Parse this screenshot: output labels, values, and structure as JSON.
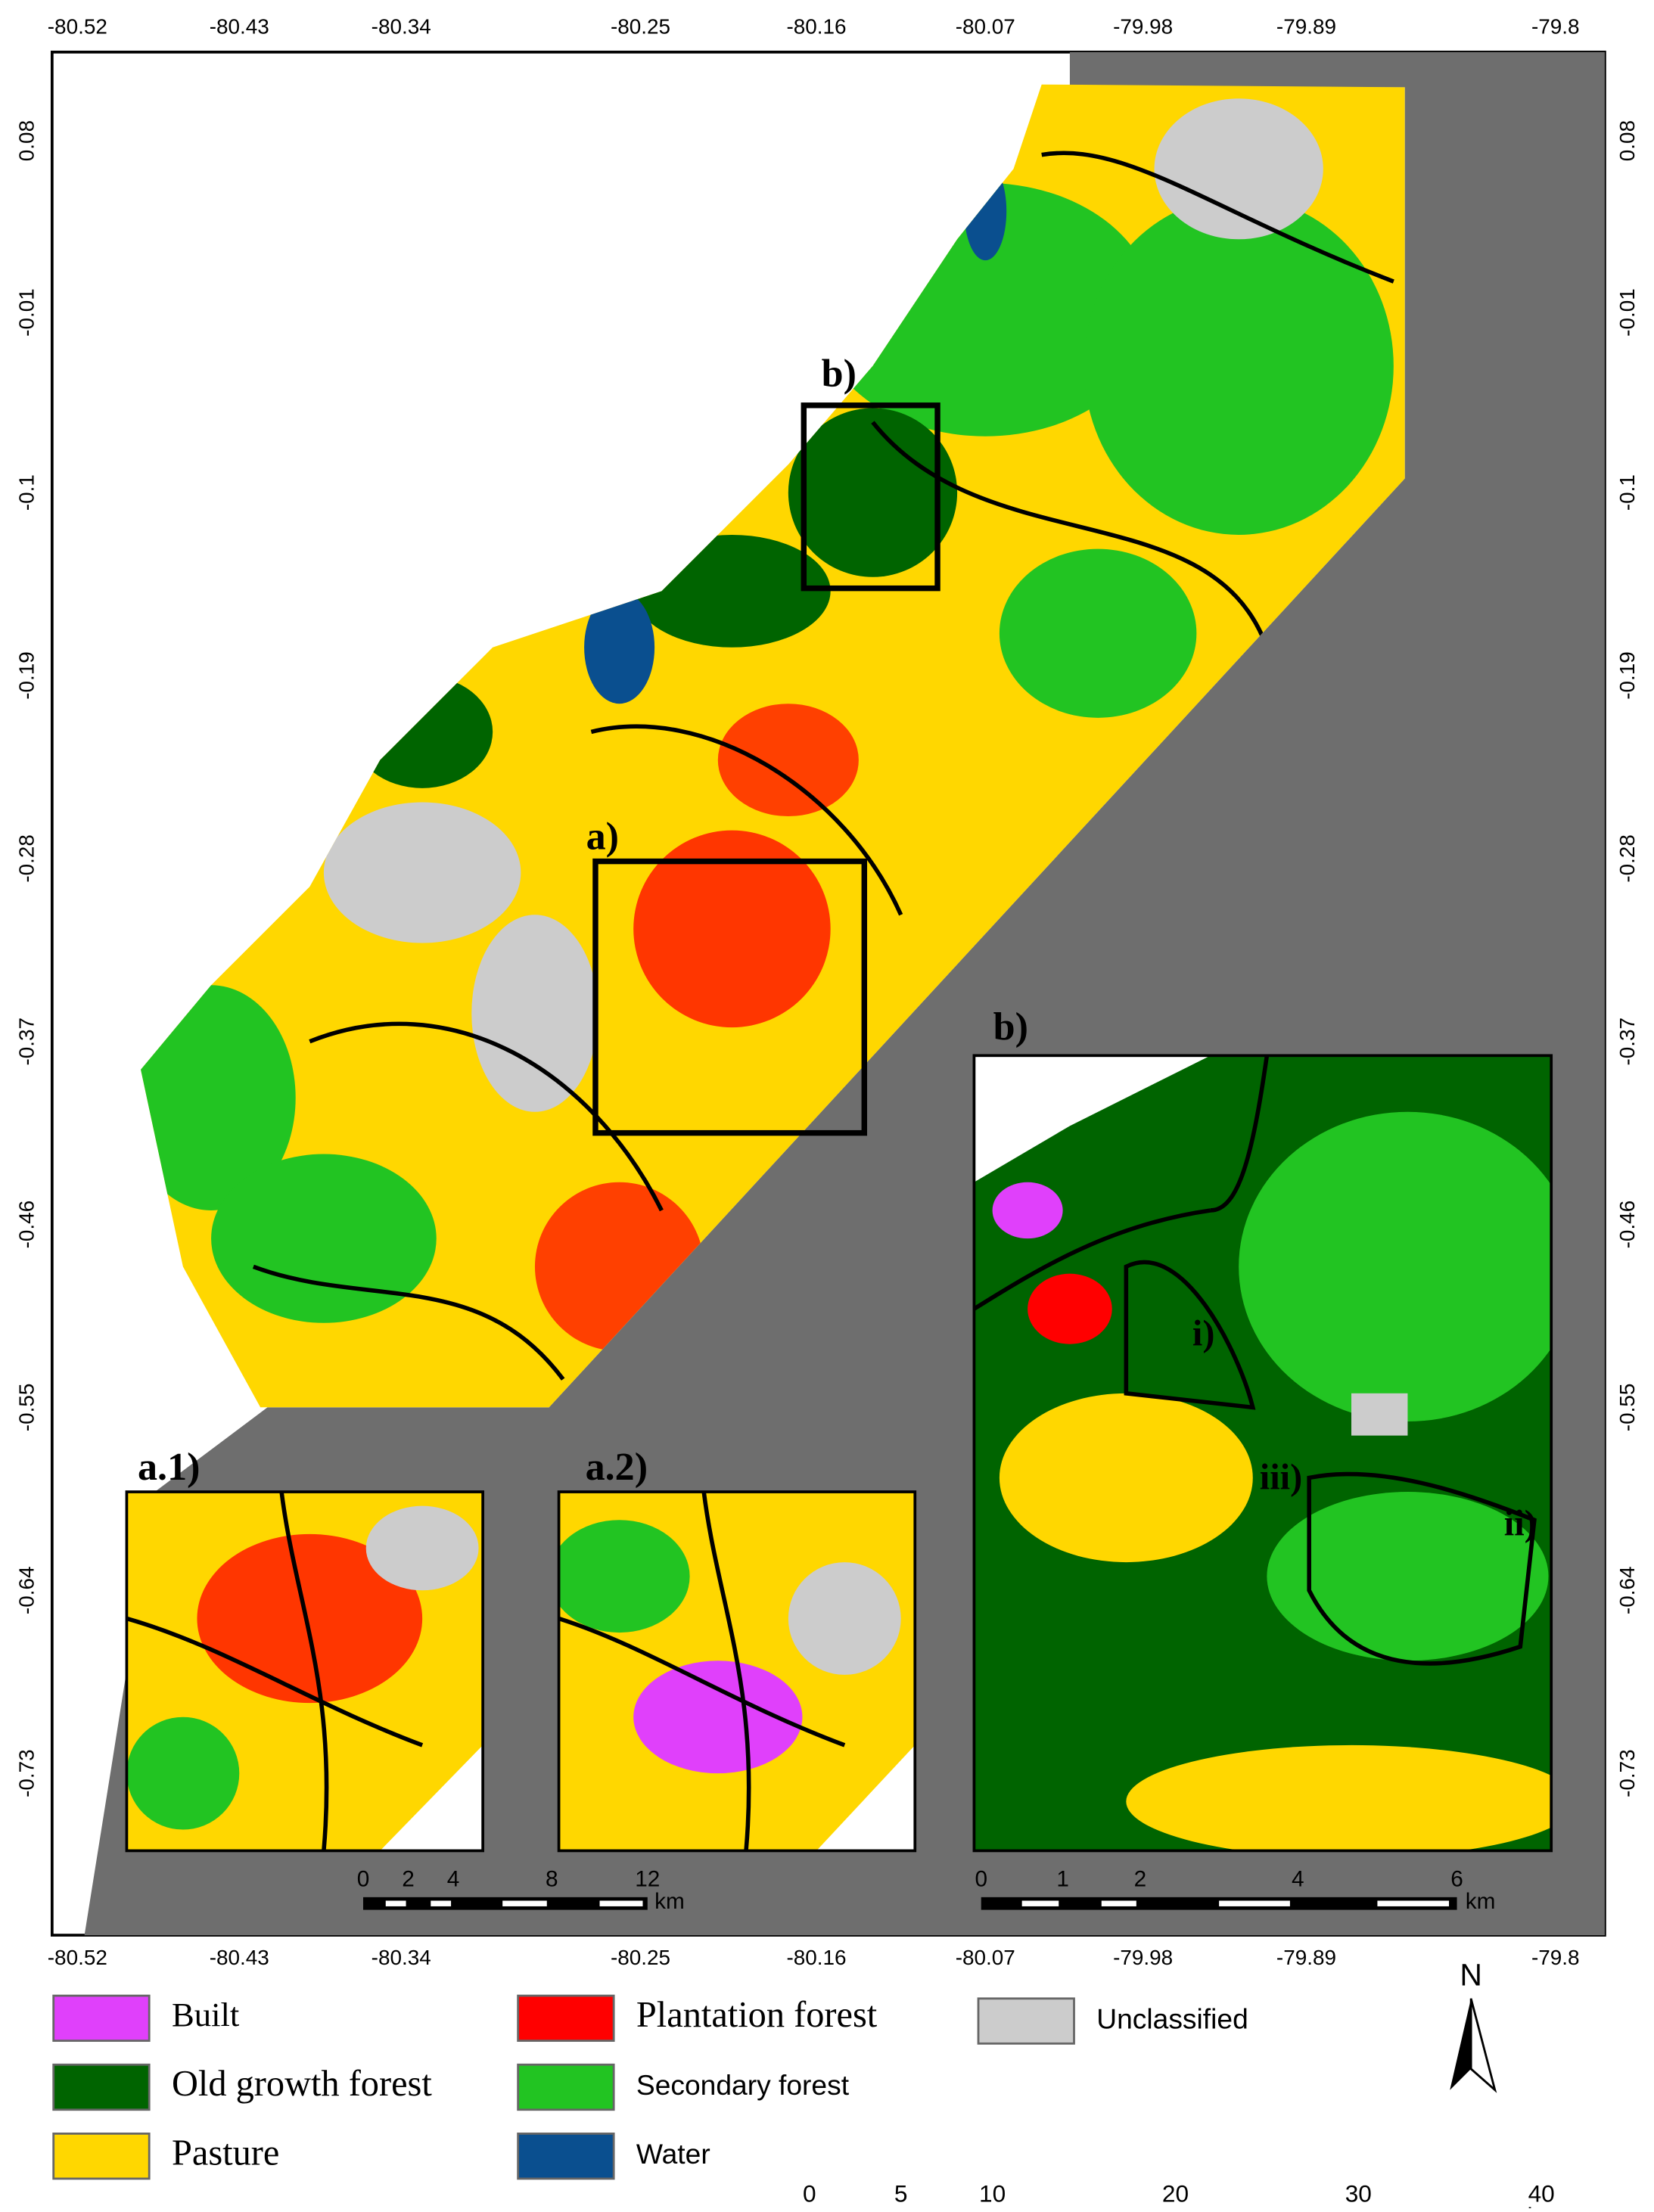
{
  "top_axis": [
    "-80.52",
    "-80.43",
    "-80.34",
    "-80.25",
    "-80.16",
    "-80.07",
    "-79.98",
    "-79.89",
    "-79.8"
  ],
  "bottom_axis": [
    "-80.52",
    "-80.43",
    "-80.34",
    "-80.25",
    "-80.16",
    "-80.07",
    "-79.98",
    "-79.89",
    "-79.8"
  ],
  "left_axis": [
    "0.08",
    "-0.01",
    "-0.1",
    "-0.19",
    "-0.28",
    "-0.37",
    "-0.46",
    "-0.55",
    "-0.64",
    "-0.73"
  ],
  "right_axis": [
    "0.08",
    "-0.01",
    "-0.1",
    "-0.19",
    "-0.28",
    "-0.37",
    "-0.46",
    "-0.55",
    "-0.64",
    "-0.73"
  ],
  "panels": {
    "b_box": "b)",
    "a_box": "a)",
    "a1": "a.1)",
    "a2": "a.2)",
    "b_inset": "b)"
  },
  "zones": [
    "i)",
    "ii)",
    "iii)"
  ],
  "inset_scale_a": {
    "ticks": [
      "0",
      "2",
      "4",
      "8",
      "12"
    ],
    "unit": "km"
  },
  "inset_scale_b": {
    "ticks": [
      "0",
      "1",
      "2",
      "4",
      "6"
    ],
    "unit": "km"
  },
  "main_scale": {
    "ticks": [
      "0",
      "5",
      "10",
      "20",
      "30",
      "40"
    ],
    "unit": "km"
  },
  "legend": [
    {
      "label": "Built",
      "color": "#e040fb"
    },
    {
      "label": "Old growth forest",
      "color": "#006400"
    },
    {
      "label": "Pasture",
      "color": "#ffd700"
    },
    {
      "label": "Plantation forest",
      "color": "#ff0000"
    },
    {
      "label": "Secondary forest",
      "color": "#22c422"
    },
    {
      "label": "Water",
      "color": "#0a4f8f"
    },
    {
      "label": "Unclassified",
      "color": "#cccccc"
    }
  ],
  "north": "N"
}
